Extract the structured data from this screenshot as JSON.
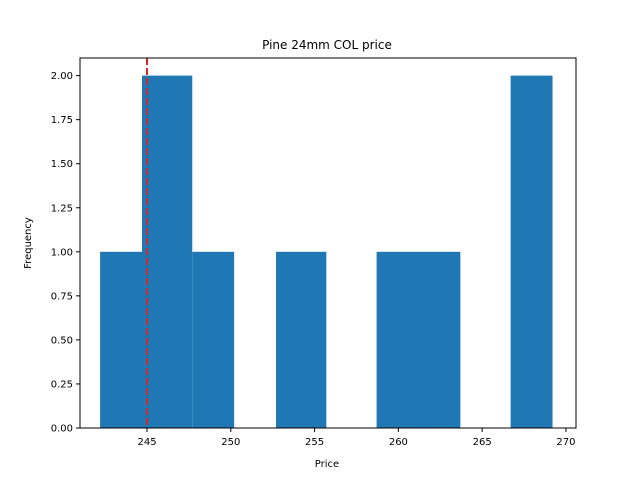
{
  "chart_data": {
    "type": "bar",
    "title": "Pine 24mm COL price",
    "xlabel": "Price",
    "ylabel": "Frequency",
    "xlim": [
      241.0,
      270.6
    ],
    "ylim": [
      0,
      2.1
    ],
    "xticks": [
      245,
      250,
      255,
      260,
      265,
      270
    ],
    "yticks": [
      0.0,
      0.25,
      0.5,
      0.75,
      1.0,
      1.25,
      1.5,
      1.75,
      2.0
    ],
    "ytick_labels": [
      "0.00",
      "0.25",
      "0.50",
      "0.75",
      "1.00",
      "1.25",
      "1.50",
      "1.75",
      "2.00"
    ],
    "bins": [
      {
        "start": 242.2,
        "end": 244.7,
        "value": 1
      },
      {
        "start": 244.7,
        "end": 247.7,
        "value": 2
      },
      {
        "start": 247.7,
        "end": 250.2,
        "value": 1
      },
      {
        "start": 250.2,
        "end": 252.7,
        "value": 0
      },
      {
        "start": 252.7,
        "end": 255.7,
        "value": 1
      },
      {
        "start": 255.7,
        "end": 258.7,
        "value": 0
      },
      {
        "start": 258.7,
        "end": 261.2,
        "value": 1
      },
      {
        "start": 261.2,
        "end": 263.7,
        "value": 1
      },
      {
        "start": 263.7,
        "end": 266.7,
        "value": 0
      },
      {
        "start": 266.7,
        "end": 269.2,
        "value": 2
      }
    ],
    "reference_line": {
      "x": 245,
      "color": "#d62728",
      "style": "dashed"
    },
    "bar_color": "#1f77b4",
    "grid": false,
    "legend": "none"
  }
}
